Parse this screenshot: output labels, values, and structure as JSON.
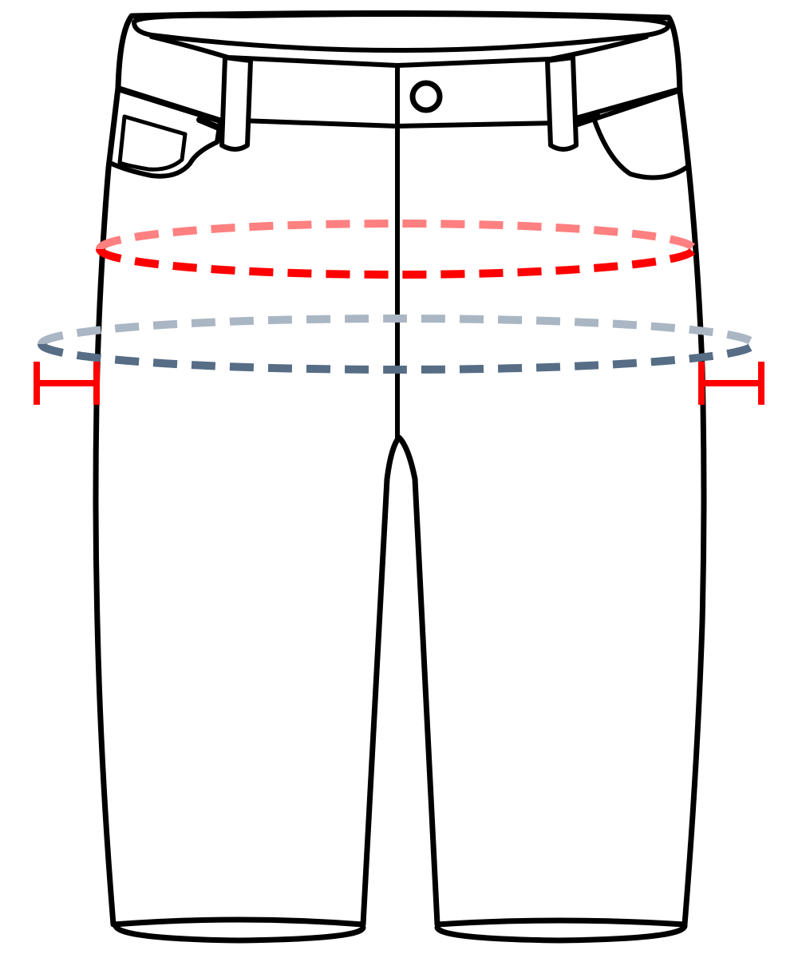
{
  "diagram": {
    "subject": "shorts",
    "colors": {
      "outline": "#000000",
      "fill": "#ffffff",
      "hip_front": "#ff0000",
      "hip_back": "#ff8080",
      "thigh_front": "#566d85",
      "thigh_back": "#aab6c3",
      "marker": "#ff0000"
    },
    "measurements": [
      {
        "id": "hip",
        "style": "dashed-ellipse",
        "color_front": "#ff0000",
        "color_back": "#ff8080"
      },
      {
        "id": "thigh",
        "style": "dashed-ellipse",
        "color_front": "#566d85",
        "color_back": "#aab6c3"
      }
    ],
    "markers": [
      {
        "id": "left-width-marker",
        "shape": "t-bar",
        "color": "#ff0000"
      },
      {
        "id": "right-width-marker",
        "shape": "t-bar",
        "color": "#ff0000"
      }
    ]
  }
}
